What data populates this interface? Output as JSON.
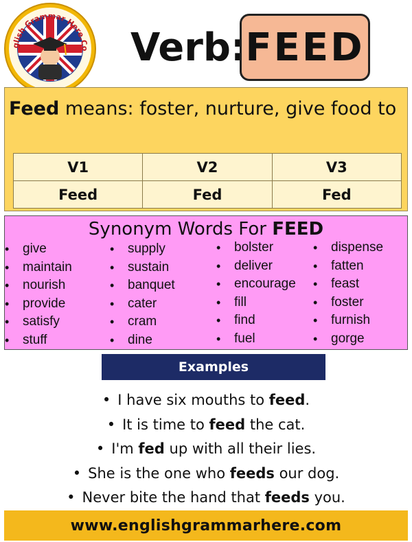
{
  "logo": {
    "text": "English Grammar Here.Com",
    "colors": {
      "ring": "#f2b705",
      "inner": "#ffffff",
      "flag_blue": "#1f3b8f",
      "flag_red": "#d21f2c"
    }
  },
  "header": {
    "verb_label": "Verb:",
    "verb": "FEED",
    "verb_box_color": "#f6b895"
  },
  "meaning": {
    "word": "Feed",
    "text": " means: foster, nurture, give food to",
    "panel_color": "#fdd55f"
  },
  "forms": {
    "headers": [
      "V1",
      "V2",
      "V3"
    ],
    "values": [
      "Feed",
      "Fed",
      "Fed"
    ]
  },
  "synonyms": {
    "title_prefix": "Synonym Words For ",
    "title_word": "FEED",
    "panel_color": "#ff9bf5",
    "columns": [
      [
        "give",
        "maintain",
        "nourish",
        "provide",
        "satisfy",
        "stuff"
      ],
      [
        "supply",
        "sustain",
        "banquet",
        "cater",
        "cram",
        "dine"
      ],
      [
        "bolster",
        "deliver",
        "encourage",
        "fill",
        "find",
        "fuel"
      ],
      [
        "dispense",
        "fatten",
        "feast",
        "foster",
        "furnish",
        "gorge"
      ]
    ]
  },
  "examples": {
    "header": "Examples",
    "header_color": "#1d2b66",
    "bullet": "•",
    "items": [
      {
        "before": "I have six mouths to ",
        "bold": "feed",
        "after": "."
      },
      {
        "before": "It is time to ",
        "bold": "feed",
        "after": " the cat."
      },
      {
        "before": "I'm ",
        "bold": "fed",
        "after": " up with all their lies."
      },
      {
        "before": "She is the one who ",
        "bold": "feeds",
        "after": " our dog."
      },
      {
        "before": "Never bite the hand that ",
        "bold": "feeds",
        "after": " you."
      }
    ]
  },
  "footer": {
    "url": "www.englishgrammarhere.com",
    "color": "#f4b81c"
  }
}
